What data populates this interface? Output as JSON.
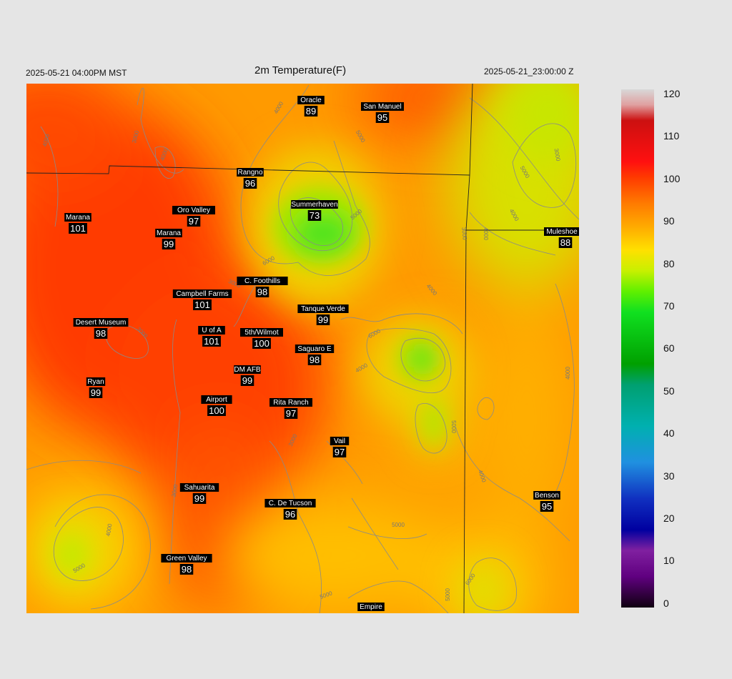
{
  "header": {
    "local_time": "2025-05-21 04:00PM MST",
    "title": "2m Temperature(F)",
    "utc_time": "2025-05-21_23:00:00 Z"
  },
  "colorbar": {
    "ticks": [
      "120",
      "110",
      "100",
      "90",
      "80",
      "70",
      "60",
      "50",
      "40",
      "30",
      "20",
      "10",
      "0"
    ]
  },
  "stations": [
    {
      "name": "Oracle",
      "temp": "89"
    },
    {
      "name": "San Manuel",
      "temp": "95"
    },
    {
      "name": "Rangno",
      "temp": "96"
    },
    {
      "name": "Summerhaven",
      "temp": "73"
    },
    {
      "name": "Marana",
      "temp": "101"
    },
    {
      "name": "Oro Valley",
      "temp": "97"
    },
    {
      "name": "Marana",
      "temp": "99"
    },
    {
      "name": "Muleshoe R",
      "temp": "88"
    },
    {
      "name": "C. Foothills",
      "temp": "98"
    },
    {
      "name": "Campbell Farms",
      "temp": "101"
    },
    {
      "name": "Tanque Verde",
      "temp": "99"
    },
    {
      "name": "Desert Museum",
      "temp": "98"
    },
    {
      "name": "U of A",
      "temp": "101"
    },
    {
      "name": "5th/Wilmot",
      "temp": "100"
    },
    {
      "name": "Saguaro E",
      "temp": "98"
    },
    {
      "name": "DM AFB",
      "temp": "99"
    },
    {
      "name": "Ryan",
      "temp": "99"
    },
    {
      "name": "Airport",
      "temp": "100"
    },
    {
      "name": "Rita Ranch",
      "temp": "97"
    },
    {
      "name": "Vail",
      "temp": "97"
    },
    {
      "name": "Sahuarita",
      "temp": "99"
    },
    {
      "name": "C. De Tucson",
      "temp": "96"
    },
    {
      "name": "Benson",
      "temp": "95"
    },
    {
      "name": "Green Valley",
      "temp": "98"
    },
    {
      "name": "Empire",
      "temp": ""
    }
  ],
  "contour_labels": [
    "4000",
    "3000",
    "4000",
    "4000",
    "5000",
    "6000",
    "5000",
    "3000",
    "3000",
    "4000",
    "5000",
    "3000",
    "4000",
    "6000",
    "5000",
    "4000",
    "4000",
    "3000",
    "4000",
    "5000",
    "3000",
    "4000",
    "6000",
    "5000",
    "5000",
    "5000",
    "3000",
    "4000"
  ]
}
